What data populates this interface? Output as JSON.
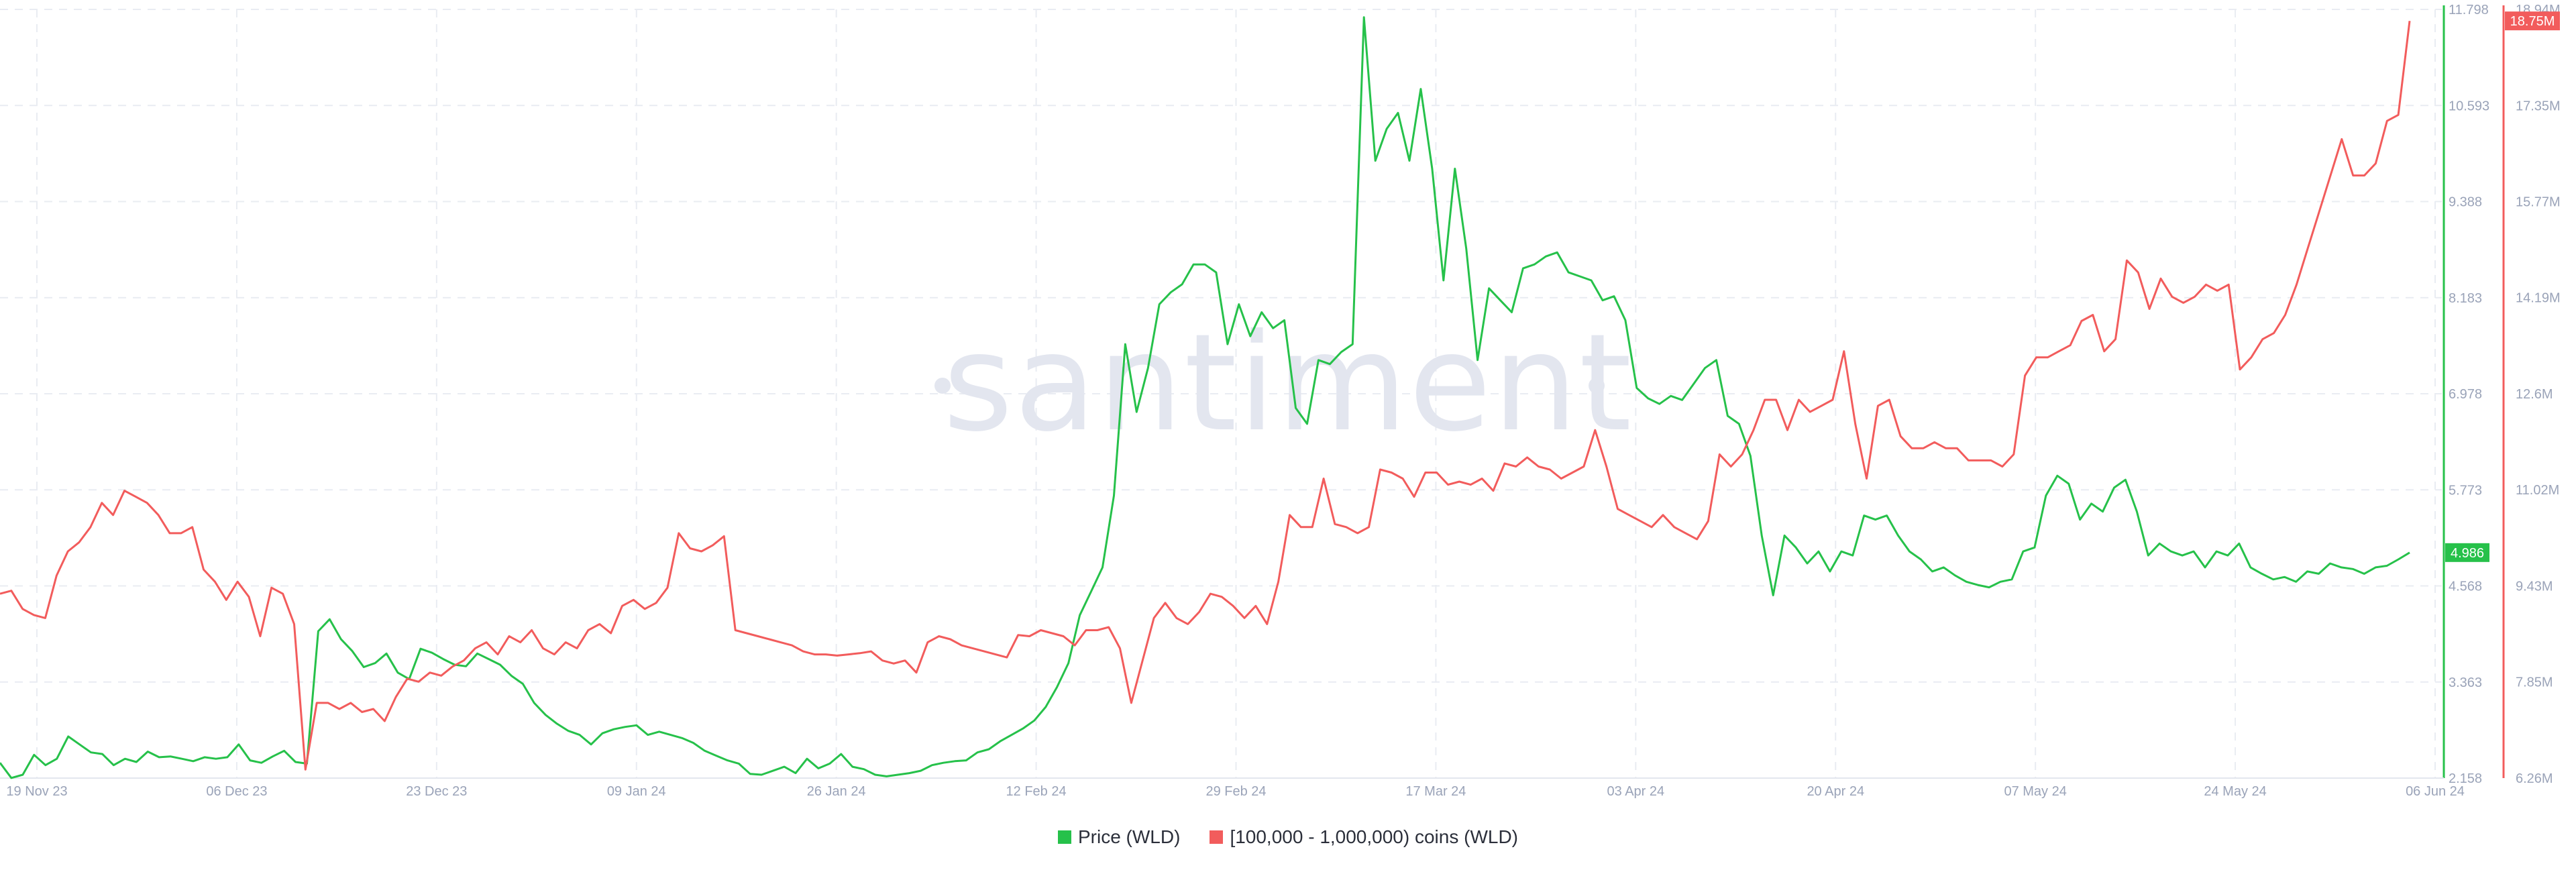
{
  "watermark": "santiment",
  "colors": {
    "price": "#26c14a",
    "holders": "#f25c5c",
    "grid": "#e9ecf2",
    "axis_text": "#9aa3b8"
  },
  "legend": {
    "price": "Price (WLD)",
    "holders": "[100,000  - 1,000,000) coins (WLD)"
  },
  "chart_data": {
    "type": "line",
    "title": "",
    "x_start": "2023-11-19",
    "x_end": "2024-06-06",
    "x_ticks": [
      "19 Nov 23",
      "06 Dec 23",
      "23 Dec 23",
      "09 Jan 24",
      "26 Jan 24",
      "12 Feb 24",
      "29 Feb 24",
      "17 Mar 24",
      "03 Apr 24",
      "20 Apr 24",
      "07 May 24",
      "24 May 24",
      "06 Jun 24"
    ],
    "y_left": {
      "ticks": [
        "2.158",
        "3.363",
        "4.568",
        "5.773",
        "6.978",
        "8.183",
        "9.388",
        "10.593",
        "11.798"
      ],
      "range": [
        2.158,
        11.798
      ],
      "current": "4.986"
    },
    "y_right": {
      "ticks": [
        "6.26M",
        "7.85M",
        "9.43M",
        "11.02M",
        "12.6M",
        "14.19M",
        "15.77M",
        "17.35M",
        "18.94M"
      ],
      "range": [
        6.26,
        18.94
      ],
      "current": "18.75M"
    },
    "grid": true,
    "legend_position": "bottom",
    "series": [
      {
        "name": "Price (WLD)",
        "axis": "left",
        "color": "#26c14a",
        "values": [
          2.35,
          2.16,
          2.2,
          2.45,
          2.32,
          2.4,
          2.68,
          2.58,
          2.48,
          2.46,
          2.32,
          2.4,
          2.36,
          2.49,
          2.42,
          2.43,
          2.4,
          2.37,
          2.42,
          2.4,
          2.42,
          2.58,
          2.38,
          2.35,
          2.43,
          2.5,
          2.36,
          2.34,
          4.0,
          4.15,
          3.9,
          3.75,
          3.55,
          3.6,
          3.72,
          3.48,
          3.4,
          3.78,
          3.73,
          3.65,
          3.58,
          3.56,
          3.72,
          3.65,
          3.58,
          3.44,
          3.34,
          3.1,
          2.95,
          2.84,
          2.75,
          2.7,
          2.58,
          2.72,
          2.77,
          2.8,
          2.82,
          2.7,
          2.74,
          2.7,
          2.66,
          2.6,
          2.5,
          2.44,
          2.38,
          2.34,
          2.21,
          2.2,
          2.25,
          2.3,
          2.22,
          2.4,
          2.28,
          2.34,
          2.46,
          2.3,
          2.27,
          2.2,
          2.18,
          2.2,
          2.22,
          2.25,
          2.32,
          2.35,
          2.37,
          2.38,
          2.48,
          2.52,
          2.62,
          2.7,
          2.78,
          2.88,
          3.05,
          3.3,
          3.6,
          4.2,
          4.5,
          4.8,
          5.7,
          7.6,
          6.75,
          7.3,
          8.1,
          8.25,
          8.35,
          8.6,
          8.6,
          8.5,
          7.6,
          8.1,
          7.7,
          8.0,
          7.8,
          7.9,
          6.8,
          6.6,
          7.4,
          7.35,
          7.5,
          7.6,
          11.7,
          9.9,
          10.3,
          10.5,
          9.9,
          10.8,
          9.8,
          8.4,
          9.8,
          8.8,
          7.4,
          8.3,
          8.15,
          8.0,
          8.55,
          8.6,
          8.7,
          8.75,
          8.5,
          8.45,
          8.4,
          8.15,
          8.2,
          7.9,
          7.05,
          6.92,
          6.85,
          6.95,
          6.9,
          7.1,
          7.3,
          7.4,
          6.7,
          6.6,
          6.2,
          5.2,
          4.45,
          5.2,
          5.05,
          4.85,
          5.0,
          4.75,
          5.0,
          4.95,
          5.45,
          5.4,
          5.45,
          5.2,
          5.0,
          4.9,
          4.75,
          4.8,
          4.7,
          4.62,
          4.58,
          4.55,
          4.62,
          4.65,
          5.0,
          5.05,
          5.7,
          5.95,
          5.85,
          5.4,
          5.6,
          5.5,
          5.8,
          5.9,
          5.5,
          4.95,
          5.1,
          5.0,
          4.95,
          5.0,
          4.8,
          5.0,
          4.95,
          5.1,
          4.8,
          4.72,
          4.65,
          4.68,
          4.62,
          4.75,
          4.72,
          4.85,
          4.8,
          4.78,
          4.72,
          4.8,
          4.82,
          4.9,
          4.986
        ]
      },
      {
        "name": "[100,000  - 1,000,000) coins (WLD)",
        "axis": "right",
        "color": "#f25c5c",
        "values": [
          9.3,
          9.35,
          9.05,
          8.95,
          8.9,
          9.6,
          10.0,
          10.15,
          10.4,
          10.8,
          10.6,
          11.0,
          10.9,
          10.8,
          10.6,
          10.3,
          10.3,
          10.4,
          9.7,
          9.5,
          9.2,
          9.5,
          9.25,
          8.6,
          9.4,
          9.3,
          8.8,
          6.4,
          7.5,
          7.5,
          7.4,
          7.5,
          7.35,
          7.4,
          7.2,
          7.6,
          7.9,
          7.85,
          8.0,
          7.95,
          8.1,
          8.2,
          8.4,
          8.5,
          8.3,
          8.6,
          8.5,
          8.7,
          8.4,
          8.3,
          8.5,
          8.4,
          8.7,
          8.8,
          8.65,
          9.1,
          9.2,
          9.05,
          9.15,
          9.4,
          10.3,
          10.05,
          10.0,
          10.1,
          10.25,
          8.7,
          8.65,
          8.6,
          8.55,
          8.5,
          8.45,
          8.35,
          8.3,
          8.3,
          8.28,
          8.3,
          8.32,
          8.35,
          8.2,
          8.15,
          8.2,
          8.0,
          8.5,
          8.6,
          8.55,
          8.45,
          8.4,
          8.35,
          8.3,
          8.25,
          8.62,
          8.6,
          8.7,
          8.65,
          8.6,
          8.45,
          8.7,
          8.7,
          8.75,
          8.4,
          7.5,
          8.2,
          8.9,
          9.15,
          8.9,
          8.8,
          9.0,
          9.3,
          9.25,
          9.1,
          8.9,
          9.1,
          8.8,
          9.5,
          10.6,
          10.4,
          10.4,
          11.2,
          10.45,
          10.4,
          10.3,
          10.4,
          11.35,
          11.3,
          11.2,
          10.9,
          11.3,
          11.3,
          11.1,
          11.15,
          11.1,
          11.2,
          11.0,
          11.45,
          11.4,
          11.55,
          11.4,
          11.35,
          11.2,
          11.3,
          11.4,
          12.0,
          11.4,
          10.7,
          10.6,
          10.5,
          10.4,
          10.6,
          10.4,
          10.3,
          10.2,
          10.5,
          11.6,
          11.4,
          11.6,
          12.0,
          12.5,
          12.5,
          12.0,
          12.5,
          12.3,
          12.4,
          12.5,
          13.3,
          12.1,
          11.2,
          12.4,
          12.5,
          11.9,
          11.7,
          11.7,
          11.8,
          11.7,
          11.7,
          11.5,
          11.5,
          11.5,
          11.4,
          11.6,
          12.9,
          13.2,
          13.2,
          13.3,
          13.4,
          13.8,
          13.9,
          13.3,
          13.5,
          14.8,
          14.6,
          14.0,
          14.5,
          14.2,
          14.1,
          14.2,
          14.4,
          14.3,
          14.4,
          13.0,
          13.2,
          13.5,
          13.6,
          13.9,
          14.4,
          15.0,
          15.6,
          16.2,
          16.8,
          16.2,
          16.2,
          16.4,
          17.1,
          17.2,
          18.75
        ]
      }
    ]
  }
}
